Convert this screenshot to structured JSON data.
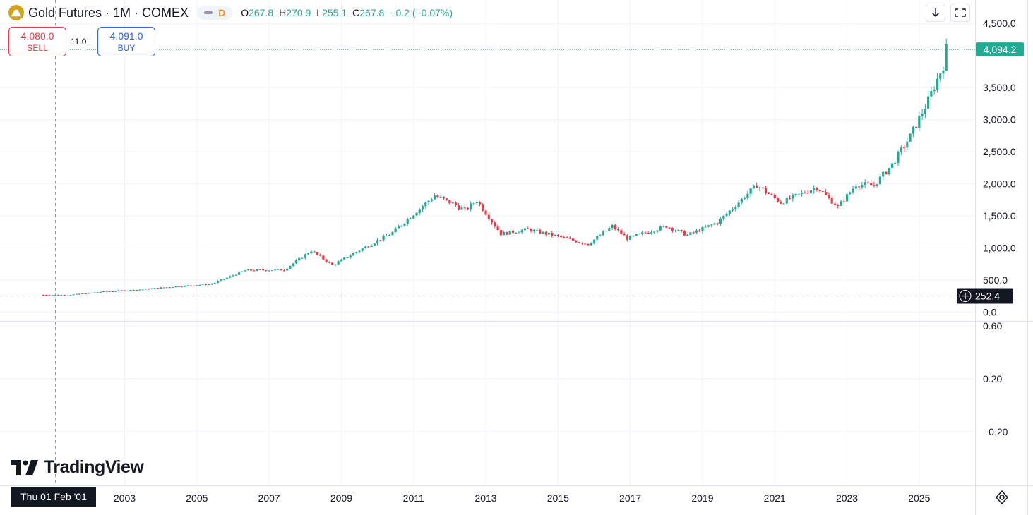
{
  "legend": {
    "title": "Gold Futures · 1M · COMEX",
    "interval_badge": "D",
    "ohlc": [
      {
        "k": "O",
        "v": "267.8"
      },
      {
        "k": "H",
        "v": "270.9"
      },
      {
        "k": "L",
        "v": "255.1"
      },
      {
        "k": "C",
        "v": "267.8"
      },
      {
        "k": "",
        "v": "−0.2 (−0.07%)"
      }
    ]
  },
  "trade": {
    "sell_price": "4,080.0",
    "sell_label": "SELL",
    "spread": "11.0",
    "buy_price": "4,091.0",
    "buy_label": "BUY"
  },
  "crosshair": {
    "date_label": "Thu 01 Feb '01",
    "price_label": "252.4",
    "price": 252.4,
    "date": "2001-02-01"
  },
  "branding": {
    "wordmark": "TradingView"
  },
  "colors": {
    "up": "#22ab94",
    "down": "#f23645",
    "last_price": "#22ab94",
    "crosshair_label_bg": "#131722"
  },
  "chart_data": [
    {
      "type": "candlestick",
      "title": "Gold Futures · 1M · COMEX",
      "interval": "1M",
      "x_axis": {
        "ticks": [
          "2003",
          "2005",
          "2007",
          "2009",
          "2011",
          "2013",
          "2015",
          "2017",
          "2019",
          "2021",
          "2023",
          "2025"
        ]
      },
      "y_axis": {
        "ticks": [
          4500,
          3500,
          3000,
          2500,
          2000,
          1500,
          1000,
          500,
          0
        ],
        "tick_labels": [
          "4,500.0",
          "3,500.0",
          "3,000.0",
          "2,500.0",
          "2,000.0",
          "1,500.0",
          "1,000.0",
          "500.0",
          "0.0"
        ],
        "range": [
          -35,
          4570
        ],
        "position": "right"
      },
      "last_price": {
        "value": 4094.2,
        "label": "4,094.2"
      },
      "anchors": [
        {
          "date": "2000-10",
          "price": 270
        },
        {
          "date": "2001-06",
          "price": 265
        },
        {
          "date": "2002-06",
          "price": 320
        },
        {
          "date": "2003-06",
          "price": 350
        },
        {
          "date": "2004-06",
          "price": 400
        },
        {
          "date": "2005-06",
          "price": 440
        },
        {
          "date": "2006-05",
          "price": 650
        },
        {
          "date": "2007-06",
          "price": 660
        },
        {
          "date": "2008-03",
          "price": 960
        },
        {
          "date": "2008-10",
          "price": 730
        },
        {
          "date": "2009-06",
          "price": 940
        },
        {
          "date": "2010-06",
          "price": 1240
        },
        {
          "date": "2011-08",
          "price": 1820
        },
        {
          "date": "2012-02",
          "price": 1690
        },
        {
          "date": "2012-06",
          "price": 1590
        },
        {
          "date": "2012-10",
          "price": 1740
        },
        {
          "date": "2013-06",
          "price": 1220
        },
        {
          "date": "2014-03",
          "price": 1290
        },
        {
          "date": "2014-12",
          "price": 1190
        },
        {
          "date": "2015-11",
          "price": 1060
        },
        {
          "date": "2016-07",
          "price": 1340
        },
        {
          "date": "2016-12",
          "price": 1150
        },
        {
          "date": "2018-01",
          "price": 1340
        },
        {
          "date": "2018-08",
          "price": 1200
        },
        {
          "date": "2019-06",
          "price": 1400
        },
        {
          "date": "2020-07",
          "price": 1980
        },
        {
          "date": "2021-03",
          "price": 1710
        },
        {
          "date": "2022-03",
          "price": 1950
        },
        {
          "date": "2022-10",
          "price": 1640
        },
        {
          "date": "2023-04",
          "price": 1990
        },
        {
          "date": "2023-10",
          "price": 1980
        },
        {
          "date": "2024-04",
          "price": 2300
        },
        {
          "date": "2024-10",
          "price": 2740
        },
        {
          "date": "2025-04",
          "price": 3300
        },
        {
          "date": "2025-09",
          "price": 3850
        },
        {
          "date": "2025-10",
          "price": 4100
        }
      ]
    },
    {
      "type": "line",
      "y_axis": {
        "ticks": [
          0.6,
          0.2,
          -0.2
        ],
        "tick_labels": [
          "0.60",
          "0.20",
          "−0.20"
        ],
        "position": "right"
      }
    }
  ]
}
